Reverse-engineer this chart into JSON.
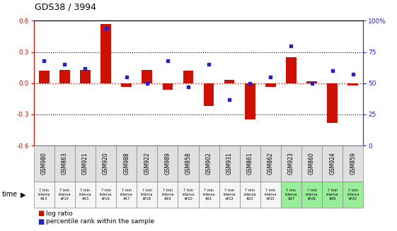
{
  "title": "GDS38 / 3994",
  "samples": [
    "GSM980",
    "GSM863",
    "GSM921",
    "GSM920",
    "GSM988",
    "GSM922",
    "GSM989",
    "GSM858",
    "GSM902",
    "GSM931",
    "GSM861",
    "GSM862",
    "GSM923",
    "GSM860",
    "GSM924",
    "GSM859"
  ],
  "time_labels": [
    "7 min\ninterva\n#13",
    "7 min\ninterva\nl#14",
    "7 min\ninterva\n#15",
    "7 min\ninterva\nl#16",
    "7 min\ninterva\n#17",
    "7 min\ninterva\nl#18",
    "7 min\ninterva\n#19",
    "7 min\ninterva\nl#20",
    "7 min\ninterva\n#21",
    "7 min\ninterva\nl#22",
    "7 min\ninterva\n#23",
    "7 min\ninterva\nl#25",
    "7 min\ninterva\n#27",
    "7 min\ninterva\nl#28",
    "7 min\ninterva\n#29",
    "7 min\ninterva\nl#30"
  ],
  "log_ratio": [
    0.12,
    0.13,
    0.13,
    0.57,
    -0.035,
    0.13,
    -0.06,
    0.12,
    -0.22,
    0.03,
    -0.35,
    -0.035,
    0.25,
    0.02,
    -0.38,
    -0.02
  ],
  "percentile": [
    68,
    65,
    62,
    94,
    55,
    50,
    68,
    47,
    65,
    37,
    50,
    55,
    80,
    50,
    60,
    57
  ],
  "ylim_left": [
    -0.6,
    0.6
  ],
  "ylim_right": [
    0,
    100
  ],
  "yticks_left": [
    -0.6,
    -0.3,
    0.0,
    0.3,
    0.6
  ],
  "yticks_right": [
    0,
    25,
    50,
    75,
    100
  ],
  "bar_color": "#cc1100",
  "dot_color": "#2222cc",
  "zero_line_color": "#cc1100",
  "legend_log_ratio": "log ratio",
  "legend_percentile": "percentile rank within the sample",
  "time_label": "time",
  "cell_bg_gray": "#e0e0e0",
  "cell_bg_green": "#99ee99",
  "cell_colors_green": [
    false,
    false,
    false,
    false,
    false,
    false,
    false,
    false,
    false,
    false,
    false,
    false,
    true,
    true,
    true,
    true
  ]
}
